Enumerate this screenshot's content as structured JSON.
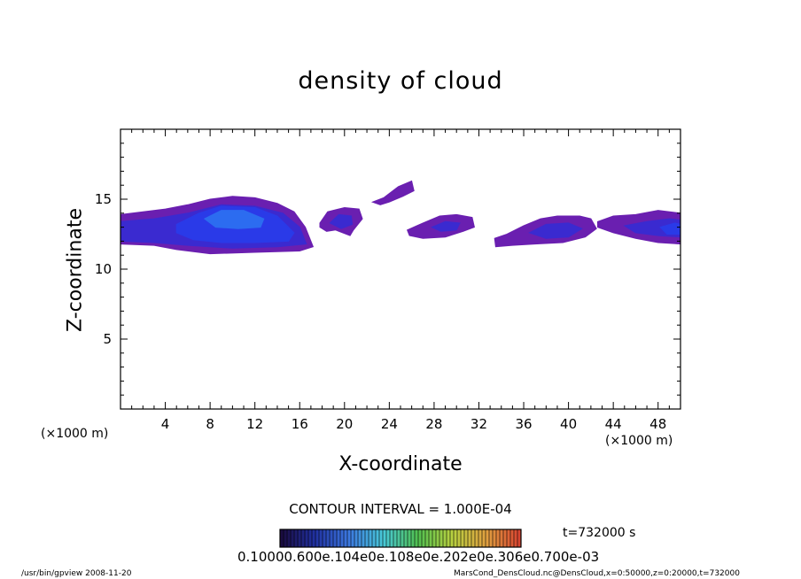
{
  "chart_data": {
    "type": "heatmap",
    "title": "density of cloud",
    "xlabel": "X-coordinate",
    "ylabel": "Z-coordinate",
    "x_unit_left": "(×1000 m)",
    "x_unit_right": "(×1000 m)",
    "xlim": [
      0,
      50
    ],
    "ylim": [
      0,
      20
    ],
    "xticks": [
      4,
      8,
      12,
      16,
      20,
      24,
      28,
      32,
      36,
      40,
      44,
      48
    ],
    "yticks": [
      5,
      10,
      15
    ],
    "contour_interval": "CONTOUR INTERVAL = 1.000E-04",
    "time_label": "t=732000 s",
    "colorbar_labels": "0.10000.600e.104e0e.108e0e.202e0e.306e0.700e-03",
    "colorbar_colors": [
      "#1a0a3c",
      "#2030a0",
      "#3c78e0",
      "#48c8d8",
      "#50c050",
      "#b8d040",
      "#e0a040",
      "#d84030"
    ],
    "cloud_levels": [
      {
        "name": "outer",
        "color": "#6a1fb0"
      },
      {
        "name": "low",
        "color": "#3a2ad0"
      },
      {
        "name": "mid",
        "color": "#2a3ae8"
      },
      {
        "name": "core",
        "color": "#2c6cf0"
      }
    ],
    "regions": [
      {
        "level": "outer",
        "polygon": [
          [
            0,
            13.9
          ],
          [
            2,
            14.1
          ],
          [
            4,
            14.3
          ],
          [
            6,
            14.6
          ],
          [
            8,
            15.0
          ],
          [
            10,
            15.2
          ],
          [
            12,
            15.1
          ],
          [
            14,
            14.7
          ],
          [
            15.5,
            14.1
          ],
          [
            16.5,
            13.0
          ],
          [
            17.2,
            11.6
          ],
          [
            16,
            11.3
          ],
          [
            12,
            11.2
          ],
          [
            8,
            11.1
          ],
          [
            5,
            11.4
          ],
          [
            3,
            11.7
          ],
          [
            0,
            11.8
          ]
        ]
      },
      {
        "level": "low",
        "polygon": [
          [
            0,
            13.4
          ],
          [
            3,
            13.6
          ],
          [
            6,
            14.0
          ],
          [
            9,
            14.6
          ],
          [
            12,
            14.5
          ],
          [
            14.5,
            14.0
          ],
          [
            16,
            13.0
          ],
          [
            16.6,
            11.8
          ],
          [
            14,
            11.6
          ],
          [
            10,
            11.5
          ],
          [
            6,
            11.7
          ],
          [
            3,
            11.9
          ],
          [
            0,
            12.0
          ]
        ]
      },
      {
        "level": "mid",
        "polygon": [
          [
            5,
            13.2
          ],
          [
            7,
            14.0
          ],
          [
            9,
            14.5
          ],
          [
            12,
            14.4
          ],
          [
            14,
            13.8
          ],
          [
            15.5,
            12.6
          ],
          [
            15,
            12.0
          ],
          [
            12,
            11.9
          ],
          [
            9,
            11.9
          ],
          [
            6.5,
            12.1
          ],
          [
            5,
            12.6
          ]
        ]
      },
      {
        "level": "core",
        "polygon": [
          [
            7.5,
            13.6
          ],
          [
            9,
            14.2
          ],
          [
            11,
            14.2
          ],
          [
            12.8,
            13.6
          ],
          [
            12.5,
            13.0
          ],
          [
            10.5,
            12.9
          ],
          [
            8.5,
            13.0
          ]
        ]
      },
      {
        "level": "outer",
        "polygon": [
          [
            17.8,
            13.3
          ],
          [
            18.5,
            14.1
          ],
          [
            20,
            14.4
          ],
          [
            21.3,
            14.3
          ],
          [
            21.6,
            13.6
          ],
          [
            20.8,
            12.8
          ],
          [
            20.5,
            12.4
          ],
          [
            19.2,
            12.8
          ],
          [
            18.4,
            12.7
          ],
          [
            17.8,
            13.0
          ]
        ]
      },
      {
        "level": "low",
        "polygon": [
          [
            18.7,
            13.3
          ],
          [
            19.5,
            13.9
          ],
          [
            20.6,
            13.8
          ],
          [
            20.7,
            13.2
          ],
          [
            19.7,
            12.9
          ]
        ]
      },
      {
        "level": "outer",
        "polygon": [
          [
            22.5,
            14.8
          ],
          [
            23.5,
            15.1
          ],
          [
            24.8,
            15.9
          ],
          [
            26.0,
            16.3
          ],
          [
            26.2,
            15.6
          ],
          [
            25.2,
            15.2
          ],
          [
            24.0,
            14.8
          ],
          [
            23.2,
            14.6
          ]
        ]
      },
      {
        "level": "outer",
        "polygon": [
          [
            25.6,
            12.8
          ],
          [
            27.0,
            13.3
          ],
          [
            28.5,
            13.8
          ],
          [
            30.0,
            13.9
          ],
          [
            31.4,
            13.7
          ],
          [
            31.6,
            13.0
          ],
          [
            30.6,
            12.7
          ],
          [
            29.0,
            12.3
          ],
          [
            27.0,
            12.2
          ],
          [
            25.8,
            12.4
          ]
        ]
      },
      {
        "level": "low",
        "polygon": [
          [
            27.8,
            13.0
          ],
          [
            29.0,
            13.4
          ],
          [
            30.3,
            13.3
          ],
          [
            30.0,
            12.8
          ],
          [
            28.6,
            12.7
          ]
        ]
      },
      {
        "level": "outer",
        "polygon": [
          [
            33.4,
            12.2
          ],
          [
            34.5,
            12.5
          ],
          [
            36.0,
            13.1
          ],
          [
            37.5,
            13.6
          ],
          [
            39.0,
            13.8
          ],
          [
            41.0,
            13.8
          ],
          [
            42.0,
            13.6
          ],
          [
            42.5,
            12.9
          ],
          [
            41.5,
            12.3
          ],
          [
            39.5,
            11.9
          ],
          [
            37.0,
            11.8
          ],
          [
            35.0,
            11.7
          ],
          [
            33.5,
            11.6
          ]
        ]
      },
      {
        "level": "low",
        "polygon": [
          [
            36.5,
            12.6
          ],
          [
            38.0,
            13.2
          ],
          [
            40.0,
            13.3
          ],
          [
            41.2,
            12.9
          ],
          [
            40.0,
            12.3
          ],
          [
            38.0,
            12.2
          ]
        ]
      },
      {
        "level": "outer",
        "polygon": [
          [
            42.6,
            13.4
          ],
          [
            44.0,
            13.8
          ],
          [
            46.0,
            13.9
          ],
          [
            48.0,
            14.2
          ],
          [
            50,
            14.0
          ],
          [
            50,
            11.8
          ],
          [
            48.0,
            11.9
          ],
          [
            46.0,
            12.2
          ],
          [
            44.0,
            12.6
          ],
          [
            42.6,
            13.0
          ]
        ]
      },
      {
        "level": "low",
        "polygon": [
          [
            45.0,
            13.1
          ],
          [
            47.0,
            13.4
          ],
          [
            49.0,
            13.6
          ],
          [
            50,
            13.5
          ],
          [
            50,
            12.3
          ],
          [
            48.0,
            12.4
          ],
          [
            46.0,
            12.6
          ]
        ]
      },
      {
        "level": "mid",
        "polygon": [
          [
            48.2,
            13.0
          ],
          [
            49.5,
            13.3
          ],
          [
            50,
            13.2
          ],
          [
            50,
            12.5
          ],
          [
            48.8,
            12.5
          ]
        ]
      }
    ]
  },
  "footer": {
    "left": "/usr/bin/gpview 2008-11-20",
    "right": "MarsCond_DensCloud.nc@DensCloud,x=0:50000,z=0:20000,t=732000"
  }
}
